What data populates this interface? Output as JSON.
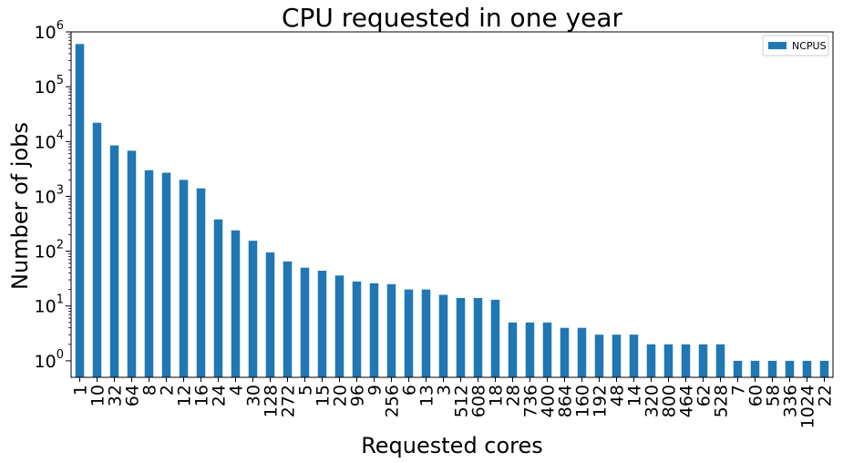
{
  "chart_data": {
    "type": "bar",
    "title": "CPU requested in one year",
    "xlabel": "Requested cores",
    "ylabel": "Number of jobs",
    "yscale": "log",
    "ylim": [
      0.5,
      1000000
    ],
    "y_ticks": [
      {
        "base": "10",
        "exp": "0"
      },
      {
        "base": "10",
        "exp": "1"
      },
      {
        "base": "10",
        "exp": "2"
      },
      {
        "base": "10",
        "exp": "3"
      },
      {
        "base": "10",
        "exp": "4"
      },
      {
        "base": "10",
        "exp": "5"
      },
      {
        "base": "10",
        "exp": "6"
      }
    ],
    "legend": {
      "position": "top-right",
      "entries": [
        "NCPUS"
      ]
    },
    "grid": false,
    "color": "#1f77b4",
    "categories": [
      "1",
      "10",
      "32",
      "64",
      "8",
      "2",
      "12",
      "16",
      "24",
      "4",
      "30",
      "128",
      "272",
      "5",
      "15",
      "20",
      "96",
      "9",
      "256",
      "6",
      "13",
      "3",
      "512",
      "608",
      "18",
      "28",
      "736",
      "400",
      "864",
      "160",
      "192",
      "48",
      "14",
      "320",
      "800",
      "464",
      "62",
      "528",
      "7",
      "60",
      "58",
      "336",
      "1024",
      "22"
    ],
    "series": [
      {
        "name": "NCPUS",
        "values": [
          600000,
          22000,
          8500,
          6800,
          3000,
          2700,
          2000,
          1400,
          380,
          240,
          155,
          95,
          65,
          50,
          44,
          36,
          28,
          26,
          25,
          20,
          20,
          16,
          14,
          14,
          13,
          5,
          5,
          5,
          4,
          4,
          3,
          3,
          3,
          2,
          2,
          2,
          2,
          2,
          1,
          1,
          1,
          1,
          1,
          1
        ]
      }
    ]
  }
}
